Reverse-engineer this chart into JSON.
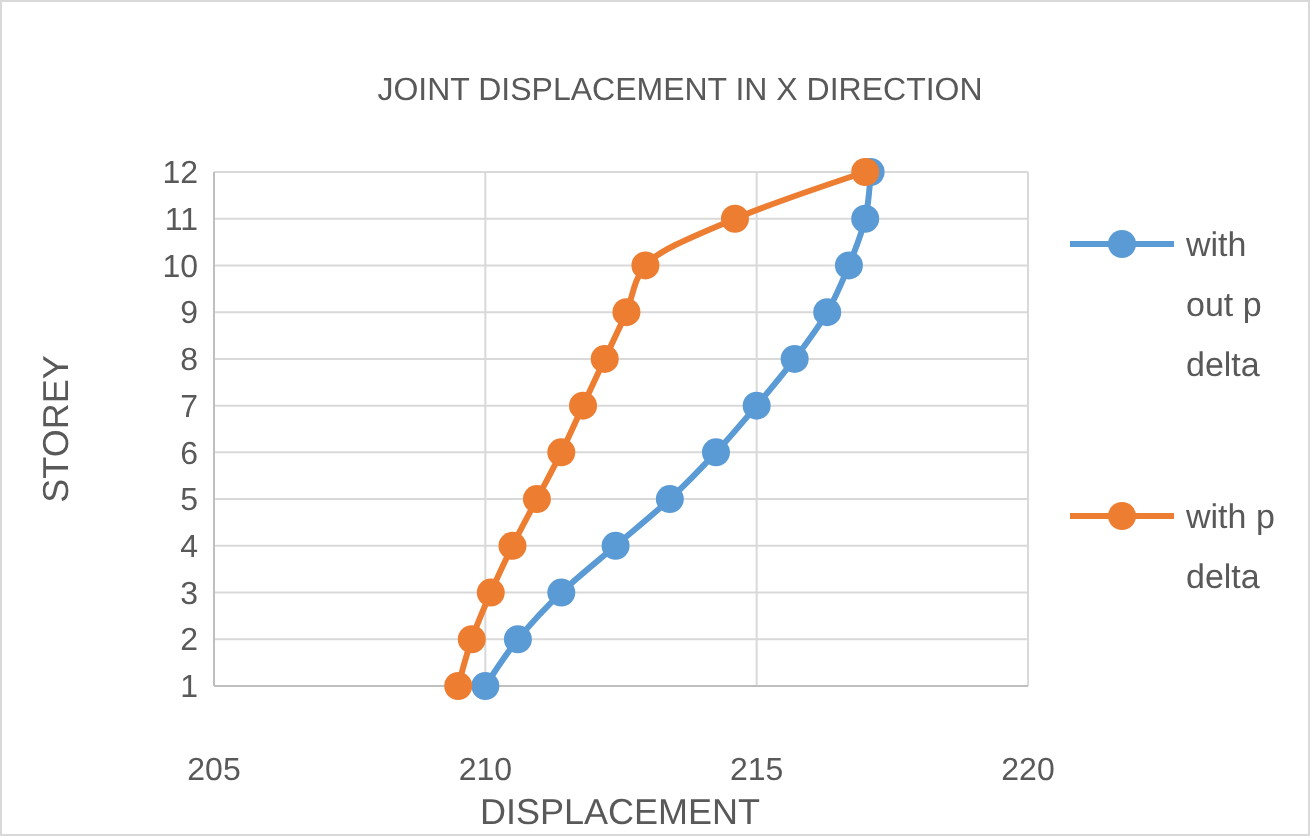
{
  "chart_data": {
    "type": "line",
    "title": "JOINT DISPLACEMENT IN X DIRECTION",
    "xlabel": "DISPLACEMENT",
    "ylabel": "STOREY",
    "series": [
      {
        "name": "with out p delta",
        "color": "#5b9bd5",
        "x": [
          210.0,
          210.6,
          211.4,
          212.4,
          213.4,
          214.25,
          215.0,
          215.7,
          216.3,
          216.7,
          217.0,
          217.1
        ],
        "values": [
          1,
          2,
          3,
          4,
          5,
          6,
          7,
          8,
          9,
          10,
          11,
          12
        ]
      },
      {
        "name": "with p delta",
        "color": "#ed7d31",
        "x": [
          209.5,
          209.75,
          210.1,
          210.5,
          210.95,
          211.4,
          211.8,
          212.2,
          212.6,
          212.95,
          214.6,
          217.0
        ],
        "values": [
          1,
          2,
          3,
          4,
          5,
          6,
          7,
          8,
          9,
          10,
          11,
          12
        ]
      }
    ],
    "xlim": [
      205,
      220
    ],
    "xticks": [
      205,
      210,
      215,
      220
    ],
    "ylim": [
      1,
      12
    ],
    "yticks": [
      1,
      2,
      3,
      4,
      5,
      6,
      7,
      8,
      9,
      10,
      11,
      12
    ],
    "grid": true,
    "legend": "right",
    "marker": "circle",
    "line_style": "solid"
  }
}
